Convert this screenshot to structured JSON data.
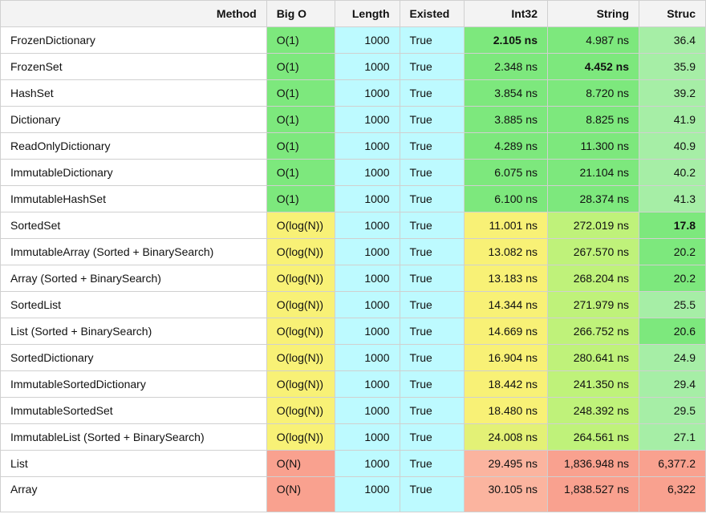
{
  "colors": {
    "green": "#7de87d",
    "lightgreen": "#a6eea6",
    "limegreen": "#bff27a",
    "yellow": "#f8f176",
    "yellowgreen": "#e3f176",
    "cyan": "#bdfaff",
    "salmon": "#f9a18f",
    "lightsalmon": "#fbb49f",
    "header": "#f3f3f3",
    "white": "#ffffff"
  },
  "columns": [
    {
      "key": "method",
      "label": "Method"
    },
    {
      "key": "bigo",
      "label": "Big O"
    },
    {
      "key": "length",
      "label": "Length"
    },
    {
      "key": "existed",
      "label": "Existed"
    },
    {
      "key": "int32",
      "label": "Int32"
    },
    {
      "key": "string",
      "label": "String"
    },
    {
      "key": "struc",
      "label": "Struc"
    }
  ],
  "rows": [
    {
      "method": "FrozenDictionary",
      "bigo": "O(1)",
      "bigo_c": "green",
      "length": "1000",
      "existed": "True",
      "int32": "2.105 ns",
      "int32_bold": true,
      "int32_c": "green",
      "string": "4.987 ns",
      "string_c": "green",
      "struc": "36.4",
      "struc_c": "lightgreen"
    },
    {
      "method": "FrozenSet",
      "bigo": "O(1)",
      "bigo_c": "green",
      "length": "1000",
      "existed": "True",
      "int32": "2.348 ns",
      "int32_c": "green",
      "string": "4.452 ns",
      "string_bold": true,
      "string_c": "green",
      "struc": "35.9",
      "struc_c": "lightgreen"
    },
    {
      "method": "HashSet",
      "bigo": "O(1)",
      "bigo_c": "green",
      "length": "1000",
      "existed": "True",
      "int32": "3.854 ns",
      "int32_c": "green",
      "string": "8.720 ns",
      "string_c": "green",
      "struc": "39.2",
      "struc_c": "lightgreen"
    },
    {
      "method": "Dictionary",
      "bigo": "O(1)",
      "bigo_c": "green",
      "length": "1000",
      "existed": "True",
      "int32": "3.885 ns",
      "int32_c": "green",
      "string": "8.825 ns",
      "string_c": "green",
      "struc": "41.9",
      "struc_c": "lightgreen"
    },
    {
      "method": "ReadOnlyDictionary",
      "bigo": "O(1)",
      "bigo_c": "green",
      "length": "1000",
      "existed": "True",
      "int32": "4.289 ns",
      "int32_c": "green",
      "string": "11.300 ns",
      "string_c": "green",
      "struc": "40.9",
      "struc_c": "lightgreen"
    },
    {
      "method": "ImmutableDictionary",
      "bigo": "O(1)",
      "bigo_c": "green",
      "length": "1000",
      "existed": "True",
      "int32": "6.075 ns",
      "int32_c": "green",
      "string": "21.104 ns",
      "string_c": "green",
      "struc": "40.2",
      "struc_c": "lightgreen"
    },
    {
      "method": "ImmutableHashSet",
      "bigo": "O(1)",
      "bigo_c": "green",
      "length": "1000",
      "existed": "True",
      "int32": "6.100 ns",
      "int32_c": "green",
      "string": "28.374 ns",
      "string_c": "green",
      "struc": "41.3",
      "struc_c": "lightgreen"
    },
    {
      "method": "SortedSet",
      "bigo": "O(log(N))",
      "bigo_c": "yellow",
      "length": "1000",
      "existed": "True",
      "int32": "11.001 ns",
      "int32_c": "yellow",
      "string": "272.019 ns",
      "string_c": "limegreen",
      "struc": "17.8",
      "struc_bold": true,
      "struc_c": "green"
    },
    {
      "method": "ImmutableArray (Sorted + BinarySearch)",
      "bigo": "O(log(N))",
      "bigo_c": "yellow",
      "length": "1000",
      "existed": "True",
      "int32": "13.082 ns",
      "int32_c": "yellow",
      "string": "267.570 ns",
      "string_c": "limegreen",
      "struc": "20.2",
      "struc_c": "green"
    },
    {
      "method": "Array (Sorted + BinarySearch)",
      "bigo": "O(log(N))",
      "bigo_c": "yellow",
      "length": "1000",
      "existed": "True",
      "int32": "13.183 ns",
      "int32_c": "yellow",
      "string": "268.204 ns",
      "string_c": "limegreen",
      "struc": "20.2",
      "struc_c": "green"
    },
    {
      "method": "SortedList",
      "bigo": "O(log(N))",
      "bigo_c": "yellow",
      "length": "1000",
      "existed": "True",
      "int32": "14.344 ns",
      "int32_c": "yellow",
      "string": "271.979 ns",
      "string_c": "limegreen",
      "struc": "25.5",
      "struc_c": "lightgreen"
    },
    {
      "method": "List (Sorted + BinarySearch)",
      "bigo": "O(log(N))",
      "bigo_c": "yellow",
      "length": "1000",
      "existed": "True",
      "int32": "14.669 ns",
      "int32_c": "yellow",
      "string": "266.752 ns",
      "string_c": "limegreen",
      "struc": "20.6",
      "struc_c": "green"
    },
    {
      "method": "SortedDictionary",
      "bigo": "O(log(N))",
      "bigo_c": "yellow",
      "length": "1000",
      "existed": "True",
      "int32": "16.904 ns",
      "int32_c": "yellow",
      "string": "280.641 ns",
      "string_c": "limegreen",
      "struc": "24.9",
      "struc_c": "lightgreen"
    },
    {
      "method": "ImmutableSortedDictionary",
      "bigo": "O(log(N))",
      "bigo_c": "yellow",
      "length": "1000",
      "existed": "True",
      "int32": "18.442 ns",
      "int32_c": "yellow",
      "string": "241.350 ns",
      "string_c": "limegreen",
      "struc": "29.4",
      "struc_c": "lightgreen"
    },
    {
      "method": "ImmutableSortedSet",
      "bigo": "O(log(N))",
      "bigo_c": "yellow",
      "length": "1000",
      "existed": "True",
      "int32": "18.480 ns",
      "int32_c": "yellow",
      "string": "248.392 ns",
      "string_c": "limegreen",
      "struc": "29.5",
      "struc_c": "lightgreen"
    },
    {
      "method": "ImmutableList (Sorted + BinarySearch)",
      "bigo": "O(log(N))",
      "bigo_c": "yellow",
      "length": "1000",
      "existed": "True",
      "int32": "24.008 ns",
      "int32_c": "yellowgreen",
      "string": "264.561 ns",
      "string_c": "limegreen",
      "struc": "27.1",
      "struc_c": "lightgreen"
    },
    {
      "method": "List",
      "bigo": "O(N)",
      "bigo_c": "salmon",
      "length": "1000",
      "existed": "True",
      "int32": "29.495 ns",
      "int32_c": "lightsalmon",
      "string": "1,836.948 ns",
      "string_c": "salmon",
      "struc": "6,377.2",
      "struc_c": "salmon"
    },
    {
      "method": "Array",
      "bigo": "O(N)",
      "bigo_c": "salmon",
      "length": "1000",
      "existed": "True",
      "int32": "30.105 ns",
      "int32_c": "lightsalmon",
      "string": "1,838.527 ns",
      "string_c": "salmon",
      "struc": "6,322",
      "struc_c": "salmon",
      "partial": true
    }
  ]
}
